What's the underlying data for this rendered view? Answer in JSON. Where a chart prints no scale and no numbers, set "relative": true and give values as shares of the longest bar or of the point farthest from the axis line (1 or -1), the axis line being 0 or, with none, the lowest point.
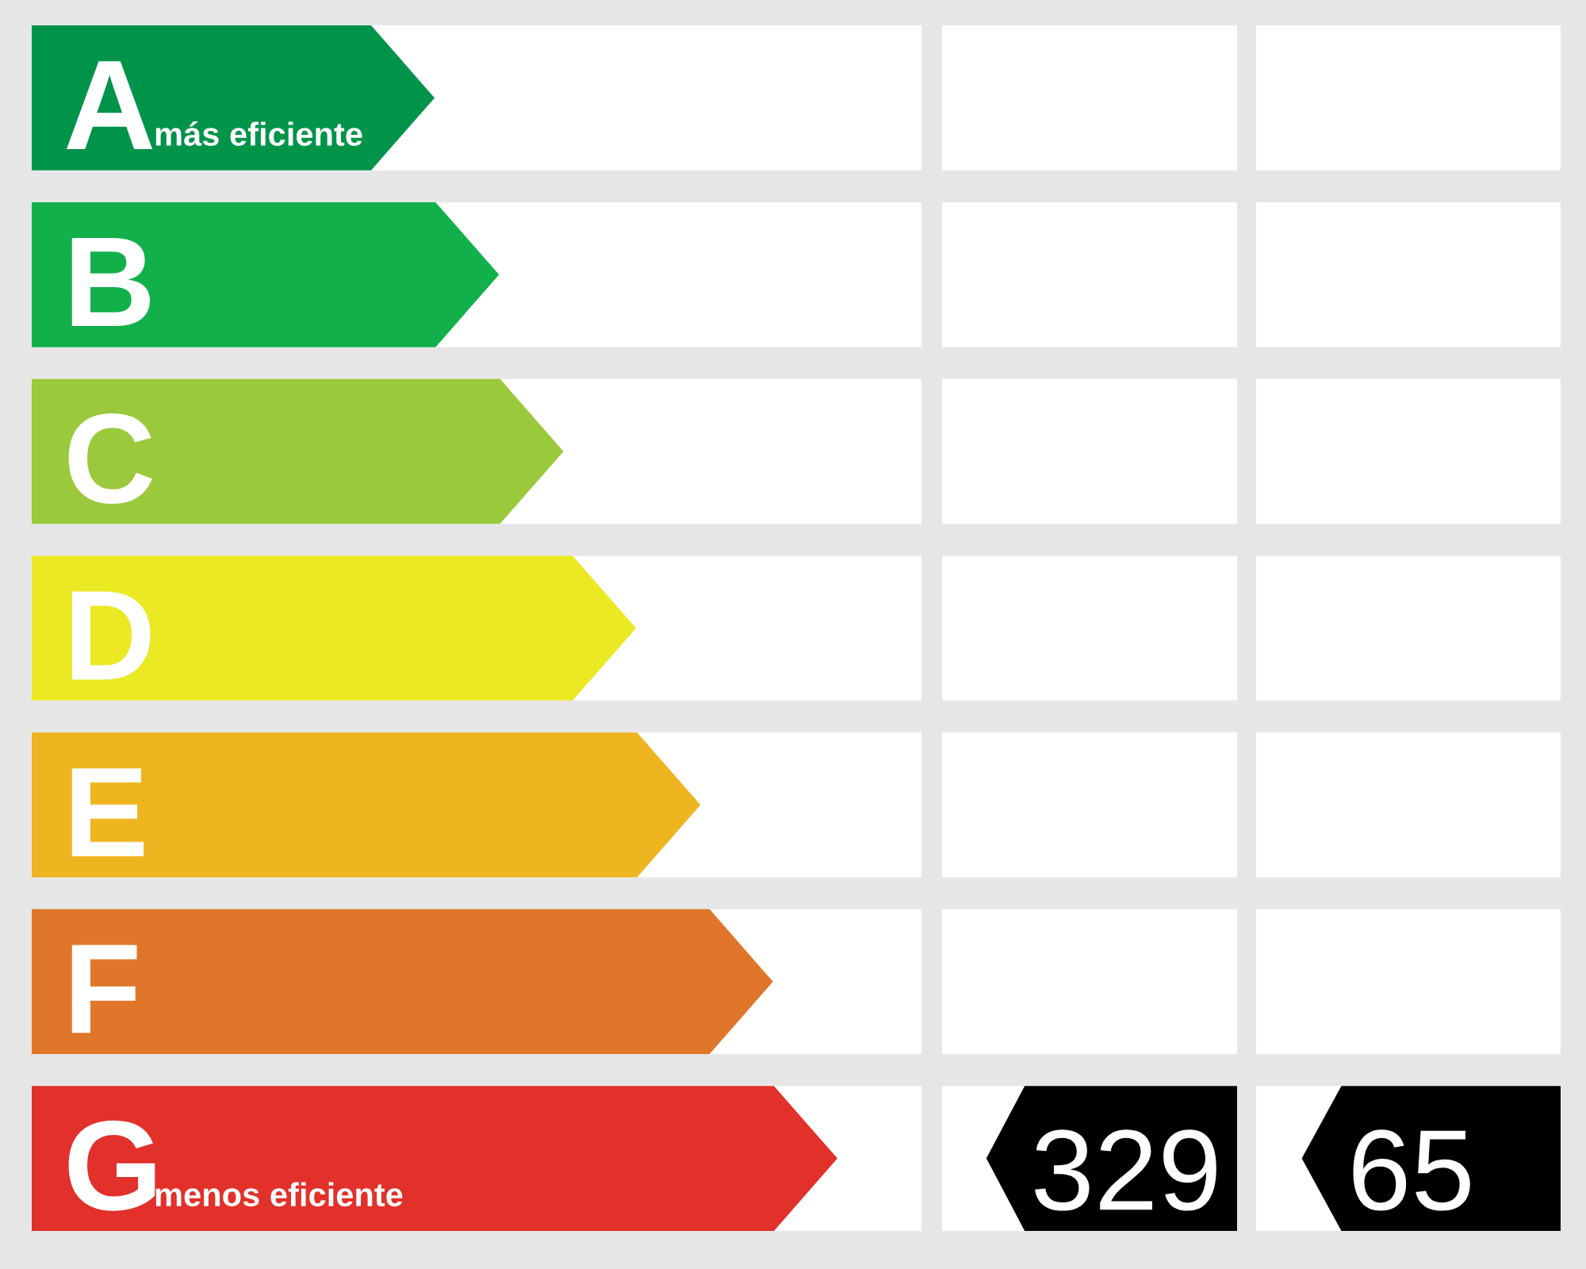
{
  "chart_data": [
    {
      "type": "bar",
      "orientation": "horizontal",
      "relative": true,
      "categories": [
        "A",
        "B",
        "C",
        "D",
        "E",
        "F",
        "G"
      ],
      "values": [
        0.5,
        0.58,
        0.66,
        0.75,
        0.83,
        0.92,
        1
      ],
      "colors": [
        "#00934a",
        "#12b04b",
        "#9bc93c",
        "#ebe824",
        "#efb520",
        "#e0762a",
        "#e2302a"
      ],
      "annotations": [
        "más eficiente",
        "menos eficiente"
      ]
    },
    {
      "type": "other",
      "categories": [
        null,
        null,
        null,
        null,
        null,
        null,
        null
      ],
      "values": [
        null,
        null,
        null,
        null,
        null,
        null,
        329
      ],
      "color": "#000000",
      "data_labels": true
    },
    {
      "type": "other",
      "categories": [
        null,
        null,
        null,
        null,
        null,
        null,
        null
      ],
      "values": [
        null,
        null,
        null,
        null,
        null,
        null,
        65
      ],
      "color": "#000000",
      "data_labels": true
    }
  ]
}
